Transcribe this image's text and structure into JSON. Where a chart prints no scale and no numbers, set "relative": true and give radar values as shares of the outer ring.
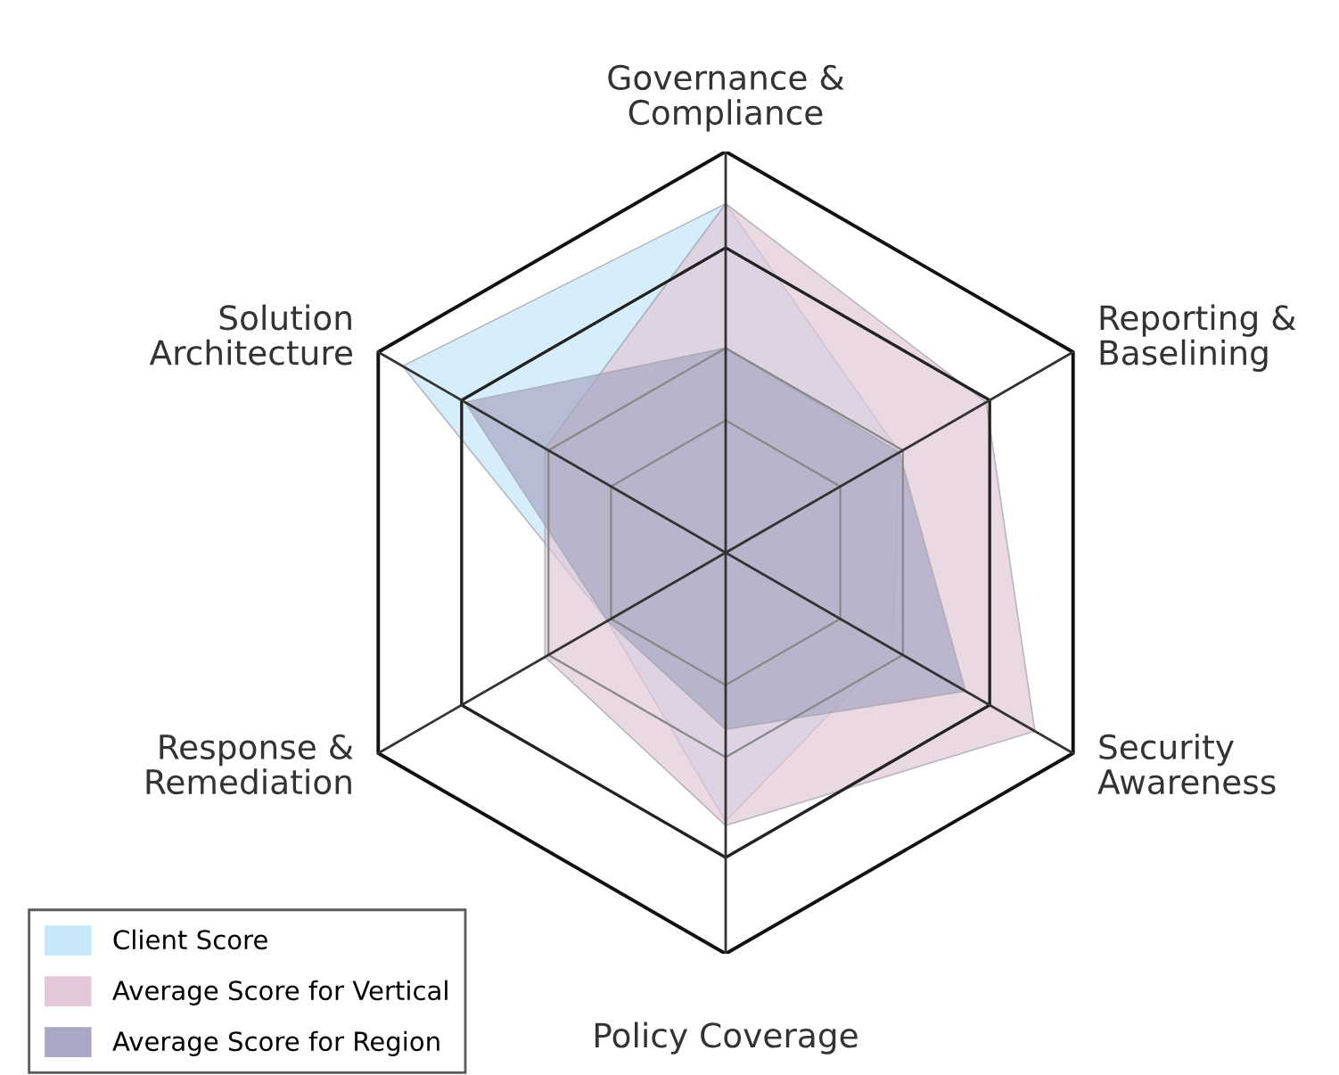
{
  "chart_data": {
    "type": "radar",
    "relative": true,
    "categories": [
      "Governance &\nCompliance",
      "Reporting &\nBaselining",
      "Security\nAwareness",
      "Policy Coverage",
      "Response &\nRemediation",
      "Solution\nArchitecture"
    ],
    "series": [
      {
        "name": "Client Score",
        "color": "#c6e8f8",
        "values": [
          0.87,
          0.5,
          0.48,
          0.67,
          0.34,
          0.93
        ]
      },
      {
        "name": "Average Score for Vertical",
        "color": "#e2c8d8",
        "values": [
          0.87,
          0.75,
          0.89,
          0.68,
          0.52,
          0.52
        ]
      },
      {
        "name": "Average Score for Region",
        "color": "#a8a8c4",
        "values": [
          0.51,
          0.5,
          0.69,
          0.44,
          0.34,
          0.75
        ]
      }
    ],
    "grid": true,
    "legend": "bottom left"
  }
}
